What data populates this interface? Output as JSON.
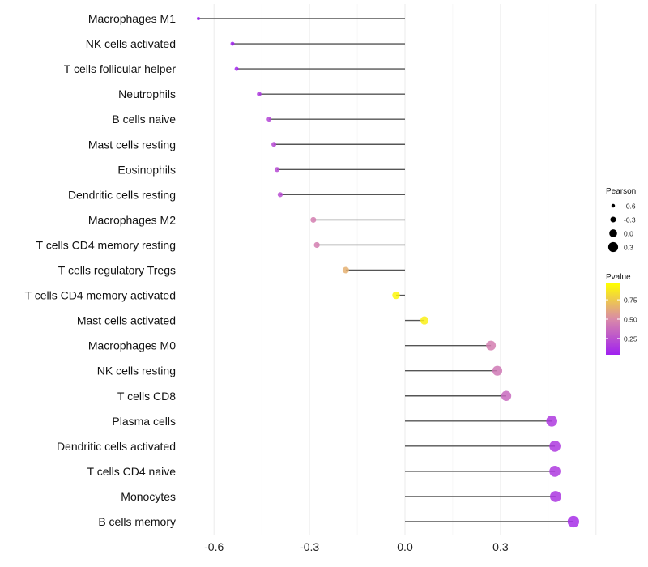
{
  "chart_data": {
    "type": "lollipop",
    "title": "",
    "xlabel": "",
    "ylabel": "",
    "xlim": [
      -0.68,
      0.66
    ],
    "x_ticks": [
      "-0.6",
      "-0.3",
      "0.0",
      "0.3"
    ],
    "x_tick_values": [
      -0.6,
      -0.3,
      0.0,
      0.3
    ],
    "grid": true,
    "categories": [
      "Macrophages M1",
      "NK cells activated",
      "T cells follicular helper",
      "Neutrophils",
      "B cells naive",
      "Mast cells resting",
      "Eosinophils",
      "Dendritic cells resting",
      "Macrophages M2",
      "T cells CD4 memory resting",
      "T cells regulatory  Tregs",
      "T cells CD4 memory activated",
      "Mast cells activated",
      "Macrophages M0",
      "NK cells resting",
      "T cells CD8",
      "Plasma cells",
      "Dendritic cells activated",
      "T cells CD4 naive",
      "Monocytes",
      "B cells memory"
    ],
    "pearson": [
      -0.649,
      -0.542,
      -0.529,
      -0.458,
      -0.427,
      -0.412,
      -0.402,
      -0.392,
      -0.288,
      -0.277,
      -0.186,
      -0.028,
      0.061,
      0.27,
      0.29,
      0.318,
      0.461,
      0.471,
      0.471,
      0.473,
      0.529
    ],
    "pvalue": [
      0.02,
      0.05,
      0.06,
      0.15,
      0.2,
      0.22,
      0.22,
      0.23,
      0.45,
      0.45,
      0.65,
      0.93,
      0.9,
      0.45,
      0.42,
      0.36,
      0.15,
      0.15,
      0.15,
      0.14,
      0.1
    ],
    "legend": {
      "position": "right",
      "size_title": "Pearson",
      "size_labels": [
        "-0.6",
        "-0.3",
        "0.0",
        "0.3"
      ],
      "size_values": [
        -0.6,
        -0.3,
        0.0,
        0.3
      ],
      "color_title": "Pvalue",
      "color_labels": [
        "0.75",
        "0.50",
        "0.25"
      ],
      "color_values": [
        0.75,
        0.5,
        0.25
      ],
      "color_range": [
        0.04,
        0.96
      ],
      "colors": [
        "#a020f0",
        "#d98aa8",
        "#ffff00"
      ]
    }
  }
}
